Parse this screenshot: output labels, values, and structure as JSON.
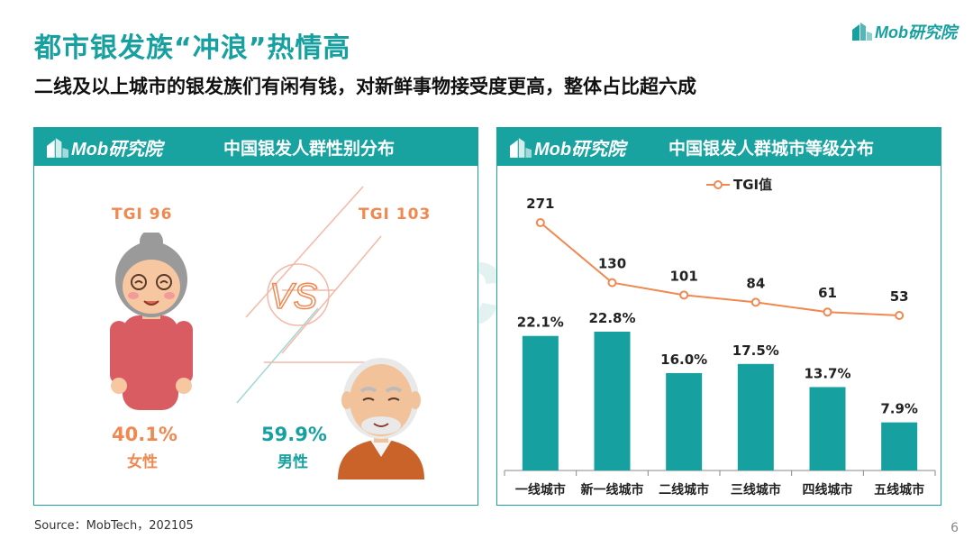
{
  "header": {
    "title": "都市银发族“冲浪”热情高",
    "subtitle": "二线及以上城市的银发族们有闲有钱，对新鲜事物接受度更高，整体占比超六成",
    "logo_text": "Mob研究院"
  },
  "left_panel": {
    "logo_text": "Mob研究院",
    "title": "中国银发人群性别分布",
    "female": {
      "tgi": "TGI  96",
      "percent": "40.1%",
      "label": "女性"
    },
    "male": {
      "tgi": "TGI  103",
      "percent": "59.9%",
      "label": "男性"
    }
  },
  "right_panel": {
    "logo_text": "Mob研究院",
    "title": "中国银发人群城市等级分布"
  },
  "chart_data": {
    "type": "bar",
    "categories": [
      "一线城市",
      "新一线城市",
      "二线城市",
      "三线城市",
      "四线城市",
      "五线城市"
    ],
    "series": [
      {
        "values": [
          22.1,
          22.8,
          16.0,
          17.5,
          13.7,
          7.9
        ],
        "labels": [
          "22.1%",
          "22.8%",
          "16.0%",
          "17.5%",
          "13.7%",
          "7.9%"
        ],
        "color": "#17a0a0"
      },
      {
        "name": "TGI值",
        "type": "line",
        "values": [
          271,
          130,
          101,
          84,
          61,
          53
        ],
        "labels": [
          "271",
          "130",
          "101",
          "84",
          "61",
          "53"
        ],
        "color": "#f08850"
      }
    ],
    "legend": "top",
    "grid": false
  },
  "watermark_text": "MobTech袤博",
  "footer": {
    "source": "Source：MobTech，202105",
    "page_number": "6"
  },
  "colors": {
    "accent": "#17a0a0",
    "orange": "#f08850"
  }
}
